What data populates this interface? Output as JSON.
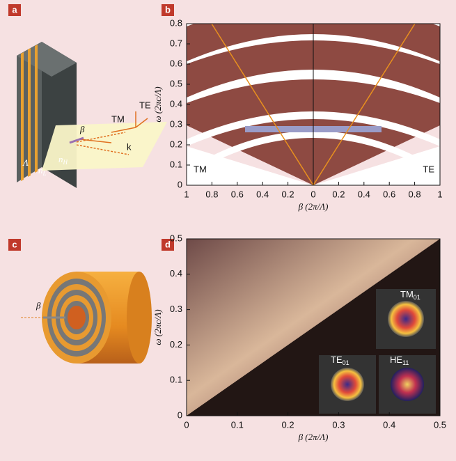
{
  "panel_labels": [
    "a",
    "b",
    "c",
    "d"
  ],
  "diagram_a": {
    "te": "TE",
    "tm": "TM",
    "beta": "β",
    "k": "k",
    "period": "Λ",
    "n_low": "n",
    "n_low_sub": "L",
    "n_high": "n",
    "n_high_sub": "H"
  },
  "diagram_c": {
    "beta": "β"
  },
  "chart_data": [
    {
      "type": "band",
      "x_label": "β (2π/Λ)",
      "y_label": "ω (2πc/Λ)",
      "annotations": [
        "TM",
        "TE"
      ],
      "xlim": [
        -1,
        1
      ],
      "xticks": [
        {
          "value": -1,
          "label": "1"
        },
        {
          "value": -0.8,
          "label": "0.8"
        },
        {
          "value": -0.6,
          "label": "0.6"
        },
        {
          "value": -0.4,
          "label": "0.4"
        },
        {
          "value": -0.2,
          "label": "0.2"
        },
        0,
        0.2,
        0.4,
        0.6,
        0.8,
        1
      ],
      "ylim": [
        0,
        0.8
      ],
      "yticks": [
        0,
        0.1,
        0.2,
        0.3,
        0.4,
        0.5,
        0.6,
        0.7,
        0.8
      ]
    },
    {
      "type": "band",
      "x_label": "β (2π/Λ)",
      "y_label": "ω (2πc/Λ)",
      "modes": [
        {
          "name": "TM",
          "subscript": "01"
        },
        {
          "name": "TE",
          "subscript": "01"
        },
        {
          "name": "HE",
          "subscript": "11"
        }
      ],
      "xlim": [
        0,
        0.5
      ],
      "xticks": [
        0,
        0.1,
        0.2,
        0.3,
        0.4,
        0.5
      ],
      "ylim": [
        0,
        0.5
      ],
      "yticks": [
        0,
        0.1,
        0.2,
        0.3,
        0.4,
        0.5
      ]
    }
  ]
}
